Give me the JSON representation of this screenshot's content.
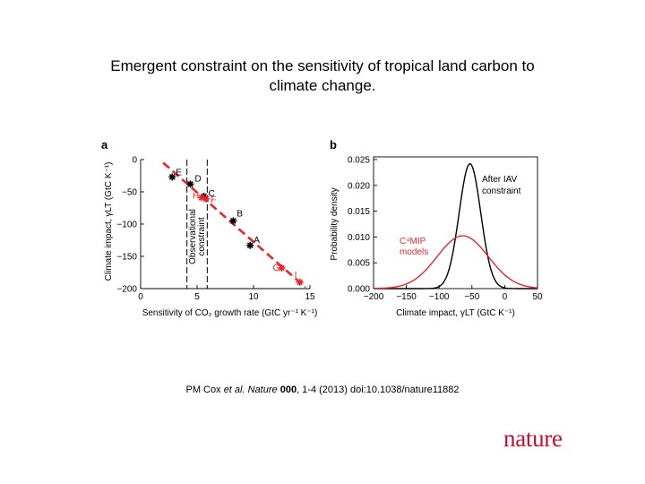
{
  "slide": {
    "title_line1": "Emergent constraint on the sensitivity of tropical land carbon to",
    "title_line2": "climate change."
  },
  "citation": {
    "authors": "PM Cox ",
    "etal": "et al.",
    "journal": "Nature",
    "volume": "000",
    "rest": ", 1-4 (2013) doi:10.1038/nature11882"
  },
  "logo": {
    "text": "nature",
    "color": "#c8102e"
  },
  "chart_data": [
    {
      "panel": "a",
      "type": "scatter",
      "xlabel": "Sensitivity of CO₂ growth rate (GtC yr⁻¹ K⁻¹)",
      "ylabel": "Climate impact, γLT (GtC K⁻¹)",
      "xlim": [
        0,
        15
      ],
      "ylim": [
        -200,
        0
      ],
      "xticks": [
        0,
        5,
        10,
        15
      ],
      "yticks": [
        0,
        -50,
        -100,
        -150,
        -200
      ],
      "points": [
        {
          "label": "A",
          "x": 9.7,
          "y": -133,
          "color": "#000000"
        },
        {
          "label": "B",
          "x": 8.2,
          "y": -95,
          "color": "#000000"
        },
        {
          "label": "C",
          "x": 5.6,
          "y": -57,
          "color": "#000000"
        },
        {
          "label": "D",
          "x": 4.4,
          "y": -38,
          "color": "#000000"
        },
        {
          "label": "E",
          "x": 2.8,
          "y": -27,
          "color": "#000000"
        },
        {
          "label": "F",
          "x": 5.8,
          "y": -61,
          "color": "#e8262a"
        },
        {
          "label": "G",
          "x": 12.5,
          "y": -168,
          "color": "#e8262a"
        },
        {
          "label": "H",
          "x": 5.4,
          "y": -59,
          "color": "#e8262a"
        },
        {
          "label": "I",
          "x": 14.1,
          "y": -190,
          "color": "#e8262a"
        }
      ],
      "fit_line": {
        "x": [
          2.0,
          14.6
        ],
        "y": [
          -5,
          -198
        ],
        "color": "#e8262a"
      },
      "constraint": {
        "x": [
          4.1,
          5.9
        ],
        "label": "Observational constraint"
      }
    },
    {
      "panel": "b",
      "type": "line",
      "xlabel": "Climate impact, γLT (GtC K⁻¹)",
      "ylabel": "Probability density",
      "xlim": [
        -200,
        50
      ],
      "ylim": [
        0,
        0.025
      ],
      "xticks": [
        -200,
        -150,
        -100,
        -50,
        0,
        50
      ],
      "yticks": [
        0.0,
        0.005,
        0.01,
        0.015,
        0.02,
        0.025
      ],
      "ytick_labels": [
        "0.000",
        "0.005",
        "0.010",
        "0.015",
        "0.020",
        "0.025"
      ],
      "series": [
        {
          "name": "After IAV constraint",
          "mean": -53,
          "sd": 16.5,
          "color": "#000000"
        },
        {
          "name": "C⁴MIP models",
          "mean": -64,
          "sd": 39,
          "color": "#e8262a"
        }
      ]
    }
  ]
}
